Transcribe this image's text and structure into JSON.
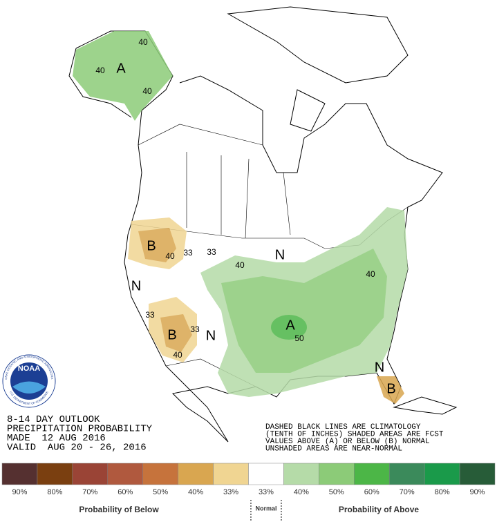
{
  "outlook": {
    "lines": [
      "8-14 DAY OUTLOOK",
      "PRECIPITATION PROBABILITY",
      "MADE  12 AUG 2016",
      "VALID  AUG 20 - 26, 2016"
    ],
    "notes": [
      "DASHED BLACK LINES ARE CLIMATOLOGY",
      "(TENTH OF INCHES) SHADED AREAS ARE FCST",
      "VALUES ABOVE (A) OR BELOW (B) NORMAL",
      "UNSHADED AREAS ARE NEAR-NORMAL"
    ]
  },
  "logo": {
    "name": "NOAA",
    "ring_top": "NATIONAL OCEANIC AND ATMOSPHERIC ADMINISTRATION",
    "ring_bottom": "U.S. DEPARTMENT OF COMMERCE"
  },
  "map_labels": [
    "A",
    "40",
    "40",
    "40",
    "B",
    "40",
    "33",
    "33",
    "N",
    "40",
    "N",
    "33",
    "B",
    "33",
    "N",
    "40",
    "A",
    "50",
    "40",
    "N",
    "B"
  ],
  "legend": {
    "bins": [
      {
        "color": "#553030",
        "label": "90%"
      },
      {
        "color": "#7a3f10",
        "label": "80%"
      },
      {
        "color": "#9a4436",
        "label": "70%"
      },
      {
        "color": "#b0593e",
        "label": "60%"
      },
      {
        "color": "#c6733c",
        "label": "50%"
      },
      {
        "color": "#d9a650",
        "label": "40%"
      },
      {
        "color": "#f0d592",
        "label": "33%"
      },
      {
        "color": "#ffffff",
        "label": "33%"
      },
      {
        "color": "#b5dba8",
        "label": "40%"
      },
      {
        "color": "#8ccb78",
        "label": "50%"
      },
      {
        "color": "#4cb647",
        "label": "60%"
      },
      {
        "color": "#3b8a5b",
        "label": "70%"
      },
      {
        "color": "#1a9a4a",
        "label": "80%"
      },
      {
        "color": "#275c38",
        "label": "90%"
      }
    ],
    "below_label": "Probability of Below",
    "normal_label": "Normal",
    "above_label": "Probability of Above"
  }
}
